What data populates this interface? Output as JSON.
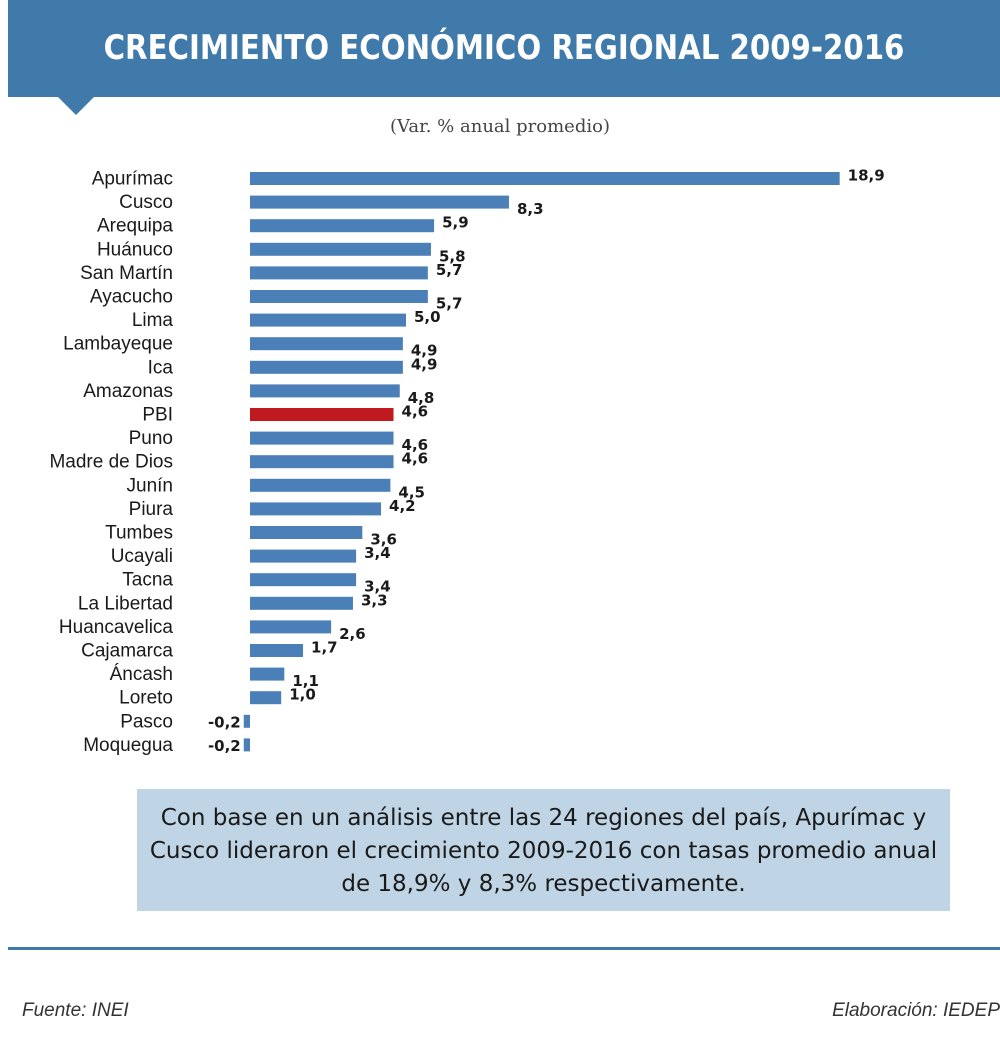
{
  "header": {
    "title": "CRECIMIENTO ECONÓMICO REGIONAL 2009-2016"
  },
  "subtitle": "(Var. % anual promedio)",
  "chart_data": {
    "type": "bar",
    "orientation": "horizontal",
    "title": "CRECIMIENTO ECONÓMICO REGIONAL 2009-2016",
    "subtitle": "(Var. % anual promedio)",
    "categories": [
      "Apurímac",
      "Cusco",
      "Arequipa",
      "Huánuco",
      "San Martín",
      "Ayacucho",
      "Lima",
      "Lambayeque",
      "Ica",
      "Amazonas",
      "PBI",
      "Puno",
      "Madre de Dios",
      "Junín",
      "Piura",
      "Tumbes",
      "Ucayali",
      "Tacna",
      "La Libertad",
      "Huancavelica",
      "Cajamarca",
      "Áncash",
      "Loreto",
      "Pasco",
      "Moquegua"
    ],
    "values": [
      18.9,
      8.3,
      5.9,
      5.8,
      5.7,
      5.7,
      5.0,
      4.9,
      4.9,
      4.8,
      4.6,
      4.6,
      4.6,
      4.5,
      4.2,
      3.6,
      3.4,
      3.4,
      3.3,
      2.6,
      1.7,
      1.1,
      1.0,
      -0.2,
      -0.2
    ],
    "value_labels": [
      "18,9",
      "8,3",
      "5,9",
      "5,8",
      "5,7",
      "5,7",
      "5,0",
      "4,9",
      "4,9",
      "4,8",
      "4,6",
      "4,6",
      "4,6",
      "4,5",
      "4,2",
      "3,6",
      "3,4",
      "3,4",
      "3,3",
      "2,6",
      "1,7",
      "1,1",
      "1,0",
      "-0,2",
      "-0,2"
    ],
    "bar_color": "#4a7fb8",
    "highlight": {
      "category": "PBI",
      "color": "#c0191f"
    },
    "grid": false,
    "legend": "none"
  },
  "note": "Con base en un análisis entre las 24 regiones del país, Apurímac y Cusco lideraron el crecimiento 2009-2016 con tasas promedio anual de 18,9% y 8,3% respectivamente.",
  "footer": {
    "source": "Fuente: INEI",
    "credit": "Elaboración: IEDEP"
  }
}
